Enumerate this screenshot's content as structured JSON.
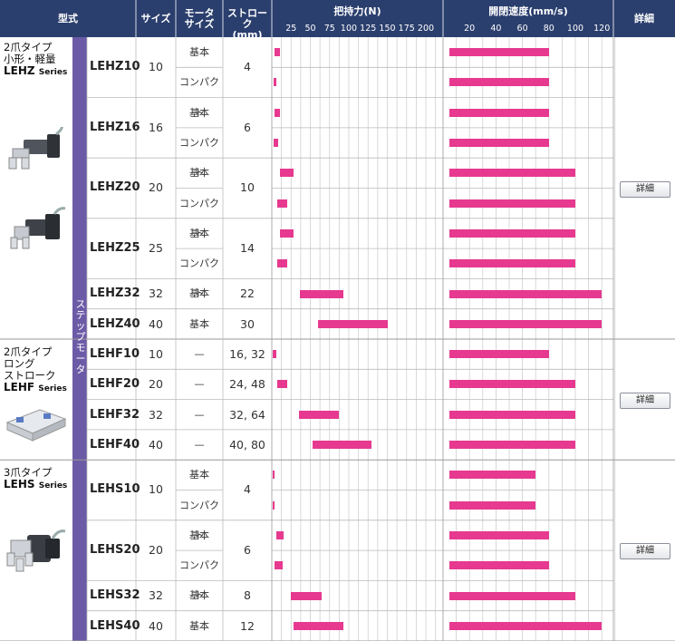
{
  "header": {
    "model_label": "型式",
    "size_label": "サイズ",
    "motor_label_1": "モータ",
    "motor_label_2": "サイズ",
    "stroke_label_1": "ストローク",
    "stroke_label_2": "(mm)",
    "force_title": "把持力(N)",
    "speed_title": "開閉速度(mm/s)",
    "detail_label": "詳細"
  },
  "category_label": "ステップモータ",
  "detail_button_label": "詳細",
  "groups": [
    {
      "line1": "2爪タイプ",
      "line2": "小形・軽量",
      "line3": "LEHZ",
      "series": "Series"
    },
    {
      "line1": "2爪タイプ",
      "line2": "ロング",
      "line3": "ストローク",
      "line4": "LEHF",
      "series": "Series"
    },
    {
      "line1": "3爪タイプ",
      "line2": "LEHS",
      "series": "Series"
    }
  ],
  "chart_data": [
    {
      "type": "bar",
      "title": "把持力(N)",
      "xlim": [
        0,
        220
      ],
      "ticks": [
        25,
        50,
        75,
        100,
        125,
        150,
        175,
        200
      ],
      "grid": true,
      "rows": [
        {
          "model": "LEHZ10",
          "motor": "基本",
          "min": 3,
          "max": 11
        },
        {
          "model": "LEHZ10",
          "motor": "コンパクト",
          "min": 2,
          "max": 6
        },
        {
          "model": "LEHZ16",
          "motor": "基本",
          "min": 3,
          "max": 11
        },
        {
          "model": "LEHZ16",
          "motor": "コンパクト",
          "min": 2,
          "max": 8
        },
        {
          "model": "LEHZ20",
          "motor": "基本",
          "min": 11,
          "max": 28
        },
        {
          "model": "LEHZ20",
          "motor": "コンパクト",
          "min": 7,
          "max": 20
        },
        {
          "model": "LEHZ25",
          "motor": "基本",
          "min": 11,
          "max": 28
        },
        {
          "model": "LEHZ25",
          "motor": "コンパクト",
          "min": 7,
          "max": 20
        },
        {
          "model": "LEHZ32",
          "motor": "基本",
          "min": 36,
          "max": 93
        },
        {
          "model": "LEHZ40",
          "motor": "基本",
          "min": 60,
          "max": 150
        },
        {
          "model": "LEHF10",
          "motor": "—",
          "min": 1,
          "max": 6
        },
        {
          "model": "LEHF20",
          "motor": "—",
          "min": 7,
          "max": 20
        },
        {
          "model": "LEHF32",
          "motor": "—",
          "min": 35,
          "max": 87
        },
        {
          "model": "LEHF40",
          "motor": "—",
          "min": 53,
          "max": 130
        },
        {
          "model": "LEHS10",
          "motor": "基本",
          "min": 1,
          "max": 4
        },
        {
          "model": "LEHS10",
          "motor": "コンパクト",
          "min": 1,
          "max": 3
        },
        {
          "model": "LEHS20",
          "motor": "基本",
          "min": 6,
          "max": 15
        },
        {
          "model": "LEHS20",
          "motor": "コンパクト",
          "min": 3,
          "max": 14
        },
        {
          "model": "LEHS32",
          "motor": "基本",
          "min": 25,
          "max": 65
        },
        {
          "model": "LEHS40",
          "motor": "基本",
          "min": 28,
          "max": 93
        }
      ]
    },
    {
      "type": "bar",
      "title": "開閉速度(mm/s)",
      "xlim": [
        0,
        130
      ],
      "ticks": [
        20,
        40,
        60,
        80,
        100,
        120
      ],
      "grid": true,
      "rows": [
        {
          "model": "LEHZ10",
          "motor": "基本",
          "min": 5,
          "max": 80
        },
        {
          "model": "LEHZ10",
          "motor": "コンパクト",
          "min": 5,
          "max": 80
        },
        {
          "model": "LEHZ16",
          "motor": "基本",
          "min": 5,
          "max": 80
        },
        {
          "model": "LEHZ16",
          "motor": "コンパクト",
          "min": 5,
          "max": 80
        },
        {
          "model": "LEHZ20",
          "motor": "基本",
          "min": 5,
          "max": 100
        },
        {
          "model": "LEHZ20",
          "motor": "コンパクト",
          "min": 5,
          "max": 100
        },
        {
          "model": "LEHZ25",
          "motor": "基本",
          "min": 5,
          "max": 100
        },
        {
          "model": "LEHZ25",
          "motor": "コンパクト",
          "min": 5,
          "max": 100
        },
        {
          "model": "LEHZ32",
          "motor": "基本",
          "min": 5,
          "max": 120
        },
        {
          "model": "LEHZ40",
          "motor": "基本",
          "min": 5,
          "max": 120
        },
        {
          "model": "LEHF10",
          "motor": "—",
          "min": 5,
          "max": 80
        },
        {
          "model": "LEHF20",
          "motor": "—",
          "min": 5,
          "max": 100
        },
        {
          "model": "LEHF32",
          "motor": "—",
          "min": 5,
          "max": 100
        },
        {
          "model": "LEHF40",
          "motor": "—",
          "min": 5,
          "max": 100
        },
        {
          "model": "LEHS10",
          "motor": "基本",
          "min": 5,
          "max": 70
        },
        {
          "model": "LEHS10",
          "motor": "コンパクト",
          "min": 5,
          "max": 70
        },
        {
          "model": "LEHS20",
          "motor": "基本",
          "min": 5,
          "max": 80
        },
        {
          "model": "LEHS20",
          "motor": "コンパクト",
          "min": 5,
          "max": 80
        },
        {
          "model": "LEHS32",
          "motor": "基本",
          "min": 5,
          "max": 100
        },
        {
          "model": "LEHS40",
          "motor": "基本",
          "min": 5,
          "max": 120
        }
      ]
    }
  ],
  "models": [
    {
      "name": "LEHZ10",
      "size": "10",
      "stroke": "4"
    },
    {
      "name": "LEHZ16",
      "size": "16",
      "stroke": "6"
    },
    {
      "name": "LEHZ20",
      "size": "20",
      "stroke": "10"
    },
    {
      "name": "LEHZ25",
      "size": "25",
      "stroke": "14"
    },
    {
      "name": "LEHZ32",
      "size": "32",
      "stroke": "22"
    },
    {
      "name": "LEHZ40",
      "size": "40",
      "stroke": "30"
    },
    {
      "name": "LEHF10",
      "size": "10",
      "stroke": "16, 32"
    },
    {
      "name": "LEHF20",
      "size": "20",
      "stroke": "24, 48"
    },
    {
      "name": "LEHF32",
      "size": "32",
      "stroke": "32, 64"
    },
    {
      "name": "LEHF40",
      "size": "40",
      "stroke": "40, 80"
    },
    {
      "name": "LEHS10",
      "size": "10",
      "stroke": "4"
    },
    {
      "name": "LEHS20",
      "size": "20",
      "stroke": "6"
    },
    {
      "name": "LEHS32",
      "size": "32",
      "stroke": "8"
    },
    {
      "name": "LEHS40",
      "size": "40",
      "stroke": "12"
    }
  ],
  "colors": {
    "header": "#2b3f6e",
    "bar": "#e6398f",
    "purple": "#6b5aa6",
    "grid": "#cfcfcf"
  }
}
